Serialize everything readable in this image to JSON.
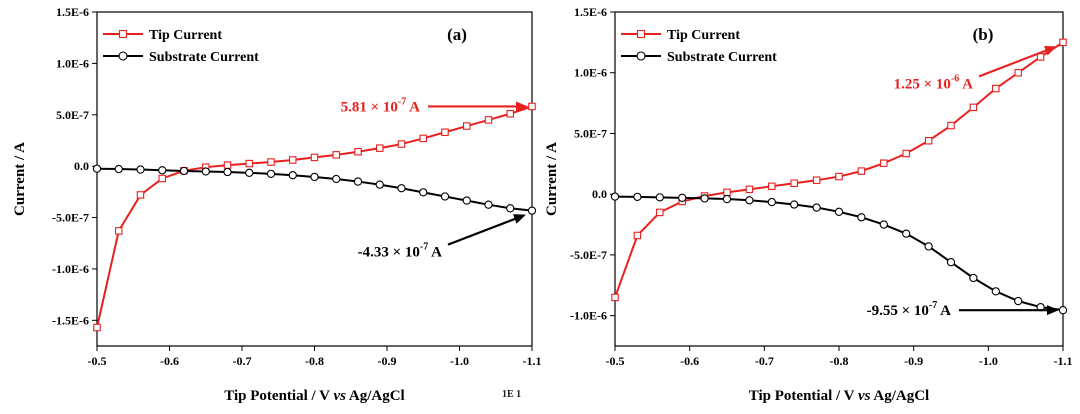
{
  "chart_data": [
    {
      "type": "line",
      "panel_label": "(a)",
      "xlabel_parts": [
        "Tip Potential / V ",
        "vs",
        " Ag/AgCl"
      ],
      "ylabel": "Current / A",
      "xlim": [
        -0.5,
        -1.1
      ],
      "ylim": [
        -1.75e-06,
        1.5e-06
      ],
      "x_ticks": [
        "-0.5",
        "-0.6",
        "-0.7",
        "-0.8",
        "-0.9",
        "-1.0",
        "-1.1"
      ],
      "x_tick_values": [
        -0.5,
        -0.6,
        -0.7,
        -0.8,
        -0.9,
        -1.0,
        -1.1
      ],
      "y_ticks": [
        "-1.5E-6",
        "-1.0E-6",
        "-5.0E-7",
        "0.0",
        "5.0E-7",
        "1.0E-6",
        "1.5E-6"
      ],
      "y_tick_values": [
        -1.5e-06,
        -1e-06,
        -5e-07,
        0.0,
        5e-07,
        1e-06,
        1.5e-06
      ],
      "legend_position": "top-left",
      "series": [
        {
          "name": "Tip Current",
          "color": "#e8201e",
          "marker": "square",
          "x": [
            -0.5,
            -0.53,
            -0.56,
            -0.59,
            -0.62,
            -0.65,
            -0.68,
            -0.71,
            -0.74,
            -0.77,
            -0.8,
            -0.83,
            -0.86,
            -0.89,
            -0.92,
            -0.95,
            -0.98,
            -1.01,
            -1.04,
            -1.07,
            -1.1
          ],
          "y": [
            -1.57e-06,
            -6.3e-07,
            -2.8e-07,
            -1.2e-07,
            -4.5e-08,
            -1e-08,
            1e-08,
            2.5e-08,
            4e-08,
            6e-08,
            8.5e-08,
            1.1e-07,
            1.4e-07,
            1.75e-07,
            2.15e-07,
            2.7e-07,
            3.3e-07,
            3.9e-07,
            4.5e-07,
            5.1e-07,
            5.81e-07
          ]
        },
        {
          "name": "Substrate Current",
          "color": "#000000",
          "marker": "circle",
          "x": [
            -0.5,
            -0.53,
            -0.56,
            -0.59,
            -0.62,
            -0.65,
            -0.68,
            -0.71,
            -0.74,
            -0.77,
            -0.8,
            -0.83,
            -0.86,
            -0.89,
            -0.92,
            -0.95,
            -0.98,
            -1.01,
            -1.04,
            -1.07,
            -1.1
          ],
          "y": [
            -2.5e-08,
            -2.8e-08,
            -3.3e-08,
            -4e-08,
            -4.7e-08,
            -5.2e-08,
            -5.7e-08,
            -6.5e-08,
            -7.5e-08,
            -8.8e-08,
            -1.05e-07,
            -1.25e-07,
            -1.5e-07,
            -1.8e-07,
            -2.15e-07,
            -2.55e-07,
            -2.95e-07,
            -3.35e-07,
            -3.75e-07,
            -4.1e-07,
            -4.33e-07
          ]
        }
      ],
      "annotations": [
        {
          "base": "5.81 × 10",
          "exp": "-7",
          "unit": " A",
          "color": "#e8201e",
          "x": -1.1,
          "y": 5.81e-07,
          "placement": "left"
        },
        {
          "base": "-4.33 × 10",
          "exp": "-7",
          "unit": " A",
          "color": "#000000",
          "x": -1.1,
          "y": -4.33e-07,
          "placement": "below-left"
        }
      ]
    },
    {
      "type": "line",
      "panel_label": "(b)",
      "xlabel_parts": [
        "Tip Potential / V ",
        "vs",
        " Ag/AgCl"
      ],
      "ylabel": "Current / A",
      "xlim": [
        -0.5,
        -1.1
      ],
      "ylim": [
        -1.25e-06,
        1.5e-06
      ],
      "x_ticks": [
        "-0.5",
        "-0.6",
        "-0.7",
        "-0.8",
        "-0.9",
        "-1.0",
        "-1.1"
      ],
      "x_tick_values": [
        -0.5,
        -0.6,
        -0.7,
        -0.8,
        -0.9,
        -1.0,
        -1.1
      ],
      "y_ticks": [
        "-1.0E-6",
        "-5.0E-7",
        "0.0",
        "5.0E-7",
        "1.0E-6",
        "1.5E-6"
      ],
      "y_tick_values": [
        -1e-06,
        -5e-07,
        0.0,
        5e-07,
        1e-06,
        1.5e-06
      ],
      "legend_position": "top-left",
      "series": [
        {
          "name": "Tip Current",
          "color": "#e8201e",
          "marker": "square",
          "x": [
            -0.5,
            -0.53,
            -0.56,
            -0.59,
            -0.62,
            -0.65,
            -0.68,
            -0.71,
            -0.74,
            -0.77,
            -0.8,
            -0.83,
            -0.86,
            -0.89,
            -0.92,
            -0.95,
            -0.98,
            -1.01,
            -1.04,
            -1.07,
            -1.1
          ],
          "y": [
            -8.5e-07,
            -3.4e-07,
            -1.5e-07,
            -6e-08,
            -1.5e-08,
            1.5e-08,
            4e-08,
            6.5e-08,
            9e-08,
            1.15e-07,
            1.45e-07,
            1.9e-07,
            2.55e-07,
            3.35e-07,
            4.4e-07,
            5.65e-07,
            7.15e-07,
            8.7e-07,
            1e-06,
            1.13e-06,
            1.25e-06
          ]
        },
        {
          "name": "Substrate Current",
          "color": "#000000",
          "marker": "circle",
          "x": [
            -0.5,
            -0.53,
            -0.56,
            -0.59,
            -0.62,
            -0.65,
            -0.68,
            -0.71,
            -0.74,
            -0.77,
            -0.8,
            -0.83,
            -0.86,
            -0.89,
            -0.92,
            -0.95,
            -0.98,
            -1.01,
            -1.04,
            -1.07,
            -1.1
          ],
          "y": [
            -2e-08,
            -2.2e-08,
            -2.6e-08,
            -3e-08,
            -3.5e-08,
            -4e-08,
            -5e-08,
            -6.5e-08,
            -8.5e-08,
            -1.1e-07,
            -1.45e-07,
            -1.9e-07,
            -2.5e-07,
            -3.25e-07,
            -4.3e-07,
            -5.6e-07,
            -6.9e-07,
            -8e-07,
            -8.8e-07,
            -9.3e-07,
            -9.55e-07
          ]
        }
      ],
      "annotations": [
        {
          "base": "1.25 × 10",
          "exp": "-6",
          "unit": " A",
          "color": "#e8201e",
          "x": -1.1,
          "y": 1.25e-06,
          "placement": "below-left"
        },
        {
          "base": "-9.55 × 10",
          "exp": "-7",
          "unit": " A",
          "color": "#000000",
          "x": -1.1,
          "y": -9.55e-07,
          "placement": "left"
        }
      ]
    }
  ],
  "caption_fragment": "1E 1"
}
